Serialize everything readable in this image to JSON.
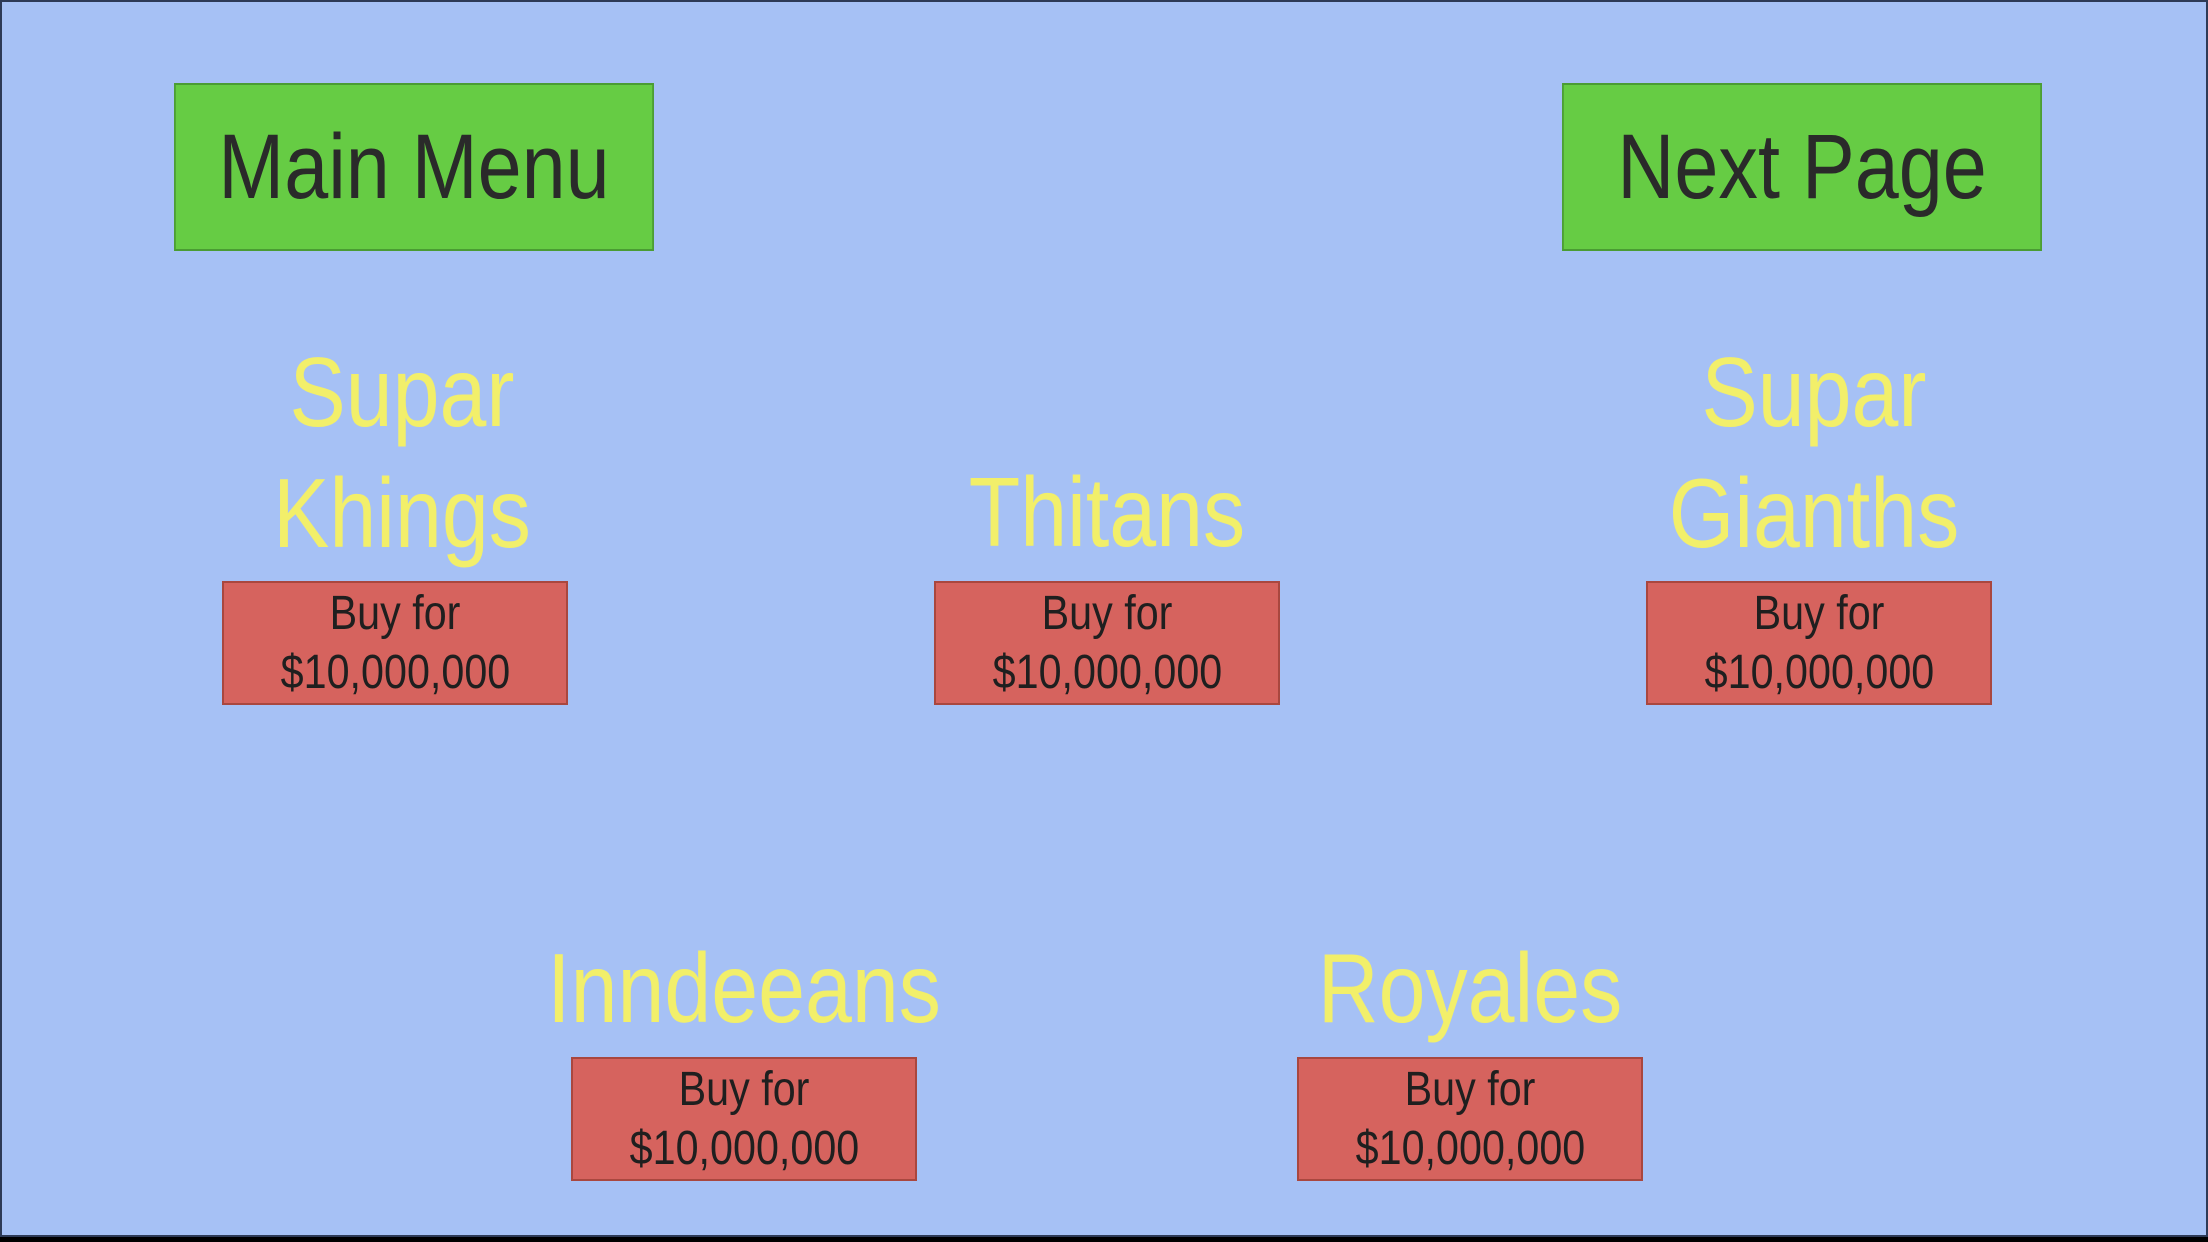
{
  "nav": {
    "main_menu_label": "Main Menu",
    "next_page_label": "Next Page"
  },
  "teams": [
    {
      "name_line1": "Supar",
      "name_line2": "Khings",
      "buy_line1": "Buy for",
      "buy_line2": "$10,000,000"
    },
    {
      "name_line1": "Thitans",
      "name_line2": "",
      "buy_line1": "Buy for",
      "buy_line2": "$10,000,000"
    },
    {
      "name_line1": "Supar",
      "name_line2": "Gianths",
      "buy_line1": "Buy for",
      "buy_line2": "$10,000,000"
    },
    {
      "name_line1": "Inndeeans",
      "name_line2": "",
      "buy_line1": "Buy for",
      "buy_line2": "$10,000,000"
    },
    {
      "name_line1": "Royales",
      "name_line2": "",
      "buy_line1": "Buy for",
      "buy_line2": "$10,000,000"
    }
  ],
  "colors": {
    "background": "#a6c1f5",
    "nav_button": "#66cc44",
    "buy_button": "#d6635e",
    "team_name": "#f2ef6a"
  }
}
